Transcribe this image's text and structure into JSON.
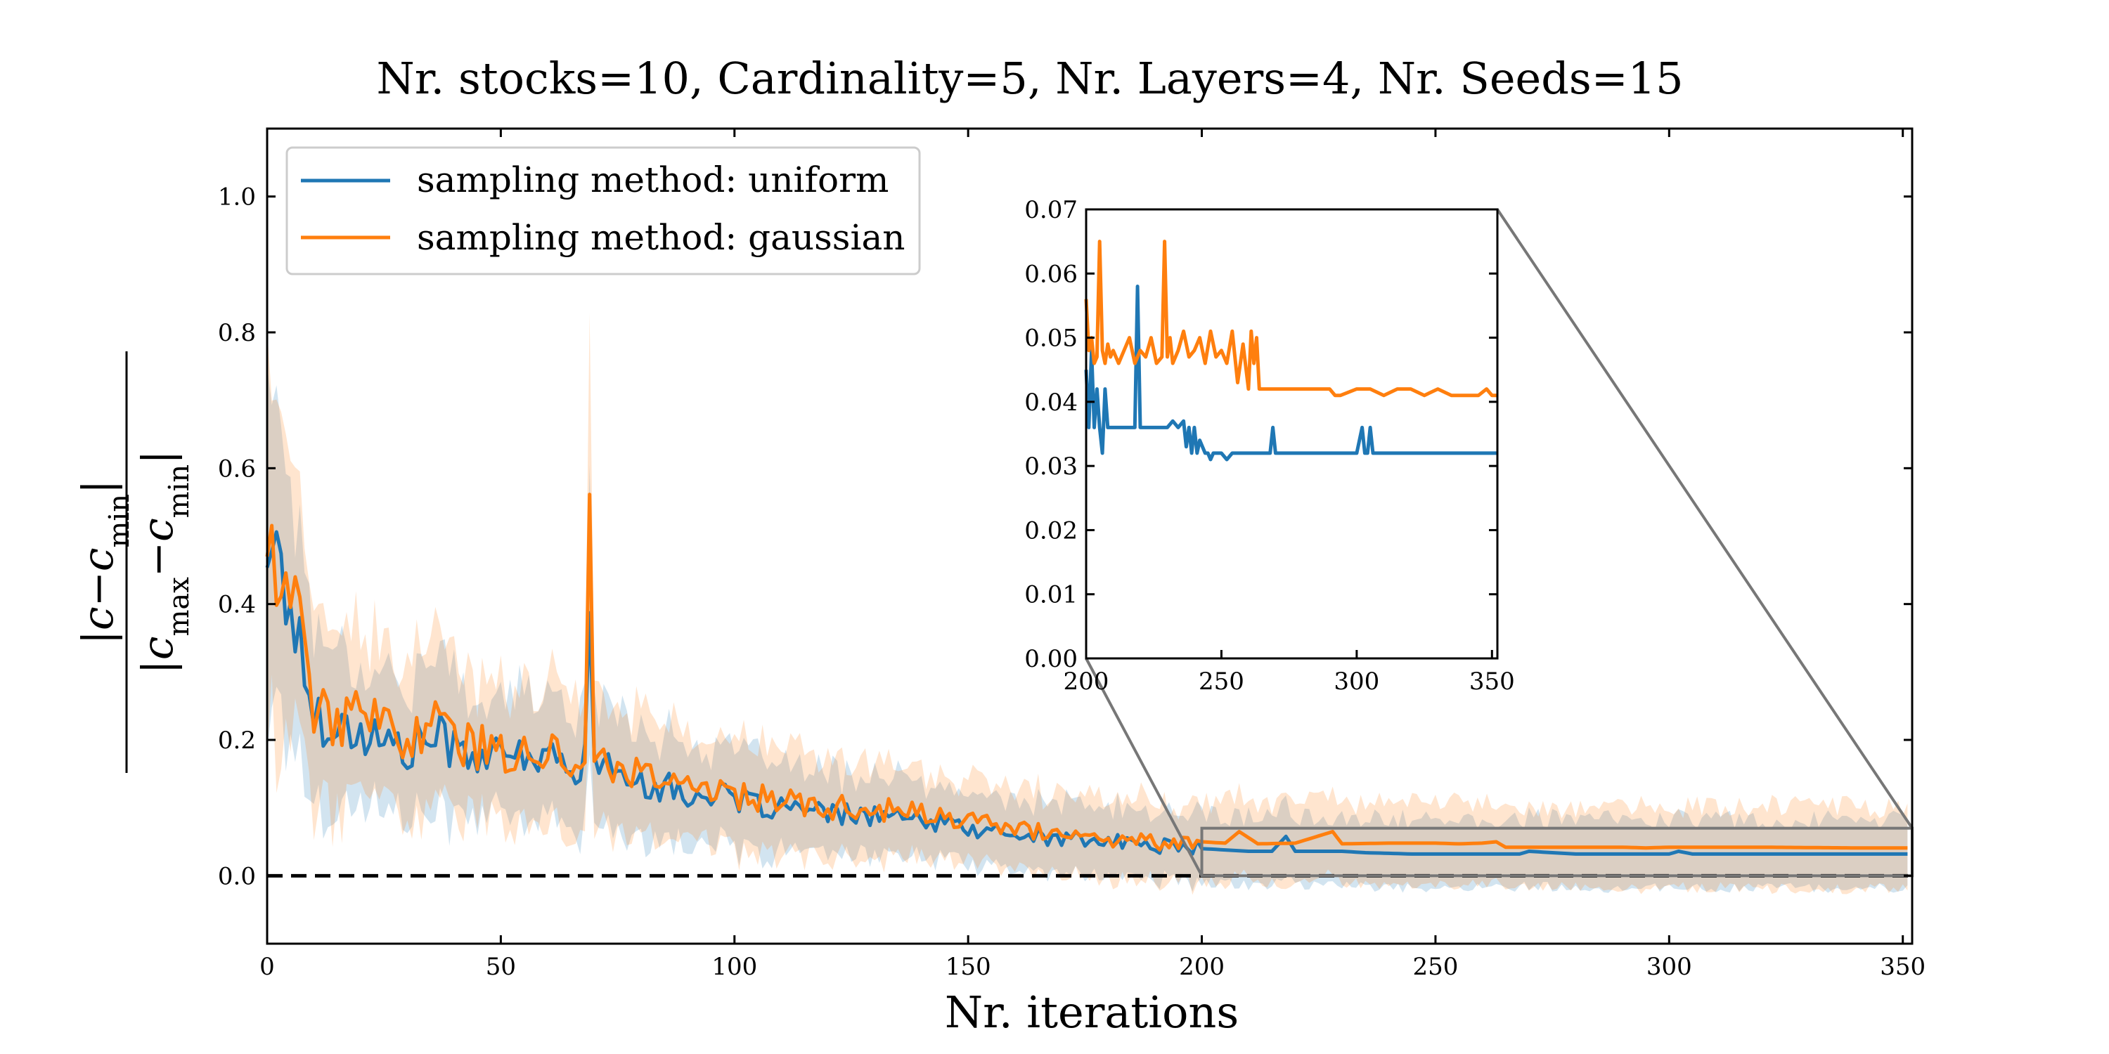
{
  "chart_data": {
    "type": "line",
    "title": "Nr. stocks=10, Cardinality=5, Nr. Layers=4, Nr. Seeds=15",
    "xlabel": "Nr. iterations",
    "ylabel": "|c−c_min| / |c_max−c_min|",
    "xlim": [
      0,
      352
    ],
    "ylim": [
      -0.1,
      1.1
    ],
    "xticks": [
      "0",
      "50",
      "100",
      "150",
      "200",
      "250",
      "300",
      "350"
    ],
    "yticks": [
      "0.0",
      "0.2",
      "0.4",
      "0.6",
      "0.8",
      "1.0"
    ],
    "legend_position": "top-left",
    "reference_line": {
      "y": 0.0,
      "style": "dashed",
      "color": "#000000"
    },
    "series": [
      {
        "name": "sampling method: uniform",
        "color": "#1f77b4",
        "anchors_x": [
          0,
          2,
          5,
          8,
          10,
          15,
          20,
          25,
          30,
          35,
          40,
          45,
          50,
          55,
          60,
          65,
          68,
          69,
          70,
          72,
          75,
          80,
          85,
          90,
          95,
          100,
          110,
          120,
          130,
          140,
          150,
          160,
          170,
          180,
          190,
          200,
          205,
          210,
          215,
          218,
          220,
          230,
          235,
          240,
          245,
          250,
          260,
          268,
          270,
          280,
          300,
          302,
          305,
          310,
          320,
          330,
          340,
          352
        ],
        "anchors_y": [
          0.5,
          0.47,
          0.4,
          0.3,
          0.24,
          0.22,
          0.21,
          0.2,
          0.18,
          0.21,
          0.19,
          0.18,
          0.17,
          0.18,
          0.17,
          0.16,
          0.17,
          0.45,
          0.17,
          0.15,
          0.16,
          0.14,
          0.13,
          0.12,
          0.12,
          0.11,
          0.1,
          0.09,
          0.09,
          0.08,
          0.07,
          0.06,
          0.055,
          0.05,
          0.045,
          0.04,
          0.038,
          0.036,
          0.036,
          0.058,
          0.036,
          0.036,
          0.034,
          0.033,
          0.032,
          0.032,
          0.032,
          0.032,
          0.036,
          0.032,
          0.032,
          0.036,
          0.032,
          0.032,
          0.032,
          0.032,
          0.032,
          0.032
        ],
        "band_width": [
          0.25,
          0.24,
          0.2,
          0.16,
          0.13,
          0.12,
          0.11,
          0.1,
          0.1,
          0.11,
          0.1,
          0.09,
          0.09,
          0.09,
          0.09,
          0.09,
          0.1,
          0.2,
          0.1,
          0.09,
          0.09,
          0.08,
          0.08,
          0.07,
          0.07,
          0.07,
          0.065,
          0.06,
          0.06,
          0.055,
          0.05,
          0.05,
          0.05,
          0.05,
          0.05,
          0.05,
          0.05,
          0.05,
          0.05,
          0.06,
          0.05,
          0.05,
          0.05,
          0.05,
          0.05,
          0.05,
          0.05,
          0.05,
          0.05,
          0.05,
          0.05,
          0.05,
          0.05,
          0.05,
          0.05,
          0.05,
          0.05,
          0.05
        ]
      },
      {
        "name": "sampling method: gaussian",
        "color": "#ff7f0e",
        "anchors_x": [
          0,
          2,
          5,
          8,
          10,
          15,
          20,
          25,
          30,
          35,
          40,
          45,
          50,
          55,
          60,
          65,
          68,
          69,
          70,
          72,
          75,
          80,
          85,
          90,
          95,
          100,
          110,
          120,
          130,
          140,
          150,
          160,
          170,
          180,
          190,
          200,
          205,
          208,
          212,
          220,
          228,
          230,
          240,
          250,
          255,
          260,
          263,
          265,
          270,
          280,
          290,
          295,
          300,
          320,
          340,
          352
        ],
        "anchors_y": [
          0.51,
          0.48,
          0.42,
          0.32,
          0.25,
          0.23,
          0.23,
          0.22,
          0.2,
          0.23,
          0.2,
          0.19,
          0.18,
          0.19,
          0.18,
          0.17,
          0.19,
          0.53,
          0.18,
          0.16,
          0.17,
          0.15,
          0.14,
          0.13,
          0.13,
          0.12,
          0.11,
          0.1,
          0.1,
          0.09,
          0.08,
          0.07,
          0.06,
          0.055,
          0.05,
          0.05,
          0.048,
          0.065,
          0.047,
          0.048,
          0.065,
          0.047,
          0.048,
          0.048,
          0.047,
          0.048,
          0.05,
          0.042,
          0.042,
          0.042,
          0.042,
          0.041,
          0.042,
          0.042,
          0.041,
          0.041
        ],
        "band_width": [
          0.26,
          0.25,
          0.21,
          0.17,
          0.14,
          0.13,
          0.12,
          0.11,
          0.11,
          0.12,
          0.11,
          0.1,
          0.1,
          0.1,
          0.1,
          0.1,
          0.11,
          0.25,
          0.11,
          0.1,
          0.1,
          0.09,
          0.09,
          0.08,
          0.08,
          0.08,
          0.075,
          0.07,
          0.07,
          0.065,
          0.06,
          0.06,
          0.06,
          0.06,
          0.06,
          0.06,
          0.06,
          0.06,
          0.06,
          0.06,
          0.06,
          0.06,
          0.06,
          0.06,
          0.06,
          0.06,
          0.06,
          0.06,
          0.06,
          0.06,
          0.06,
          0.06,
          0.06,
          0.06,
          0.06,
          0.06
        ]
      }
    ],
    "inset": {
      "xlim": [
        200,
        352
      ],
      "ylim": [
        0.0,
        0.07
      ],
      "xticks": [
        "200",
        "250",
        "300",
        "350"
      ],
      "yticks": [
        "0.00",
        "0.01",
        "0.02",
        "0.03",
        "0.04",
        "0.05",
        "0.06",
        "0.07"
      ],
      "series": [
        {
          "name": "sampling method: uniform",
          "color": "#1f77b4",
          "x": [
            200,
            201,
            202,
            203,
            204,
            205,
            206,
            207,
            208,
            210,
            212,
            214,
            216,
            217,
            218,
            219,
            220,
            222,
            224,
            226,
            228,
            230,
            232,
            234,
            236,
            237,
            238,
            239,
            240,
            241,
            242,
            244,
            245,
            246,
            247,
            248,
            250,
            252,
            254,
            256,
            258,
            260,
            262,
            264,
            266,
            268,
            269,
            270,
            272,
            280,
            290,
            300,
            302,
            303,
            304,
            305,
            306,
            307,
            308,
            310,
            320,
            330,
            340,
            352
          ],
          "y": [
            0.045,
            0.036,
            0.048,
            0.036,
            0.042,
            0.036,
            0.032,
            0.042,
            0.036,
            0.036,
            0.036,
            0.036,
            0.036,
            0.036,
            0.036,
            0.058,
            0.036,
            0.036,
            0.036,
            0.036,
            0.036,
            0.036,
            0.037,
            0.036,
            0.037,
            0.033,
            0.036,
            0.032,
            0.036,
            0.032,
            0.034,
            0.032,
            0.032,
            0.031,
            0.032,
            0.032,
            0.032,
            0.031,
            0.032,
            0.032,
            0.032,
            0.032,
            0.032,
            0.032,
            0.032,
            0.032,
            0.036,
            0.032,
            0.032,
            0.032,
            0.032,
            0.032,
            0.036,
            0.032,
            0.032,
            0.036,
            0.032,
            0.032,
            0.032,
            0.032,
            0.032,
            0.032,
            0.032,
            0.032
          ]
        },
        {
          "name": "sampling method: gaussian",
          "color": "#ff7f0e",
          "x": [
            200,
            201,
            202,
            203,
            204,
            205,
            206,
            207,
            208,
            209,
            210,
            212,
            214,
            216,
            218,
            220,
            222,
            224,
            226,
            228,
            229,
            230,
            231,
            232,
            234,
            236,
            238,
            240,
            242,
            244,
            246,
            248,
            250,
            252,
            254,
            256,
            258,
            260,
            261,
            262,
            263,
            264,
            266,
            270,
            280,
            290,
            292,
            294,
            300,
            305,
            310,
            315,
            320,
            325,
            330,
            335,
            340,
            345,
            348,
            350,
            352
          ],
          "y": [
            0.056,
            0.048,
            0.05,
            0.046,
            0.047,
            0.065,
            0.048,
            0.046,
            0.049,
            0.047,
            0.048,
            0.046,
            0.048,
            0.05,
            0.046,
            0.048,
            0.047,
            0.05,
            0.046,
            0.047,
            0.065,
            0.047,
            0.05,
            0.046,
            0.048,
            0.051,
            0.047,
            0.048,
            0.05,
            0.046,
            0.051,
            0.047,
            0.048,
            0.046,
            0.051,
            0.043,
            0.049,
            0.042,
            0.051,
            0.046,
            0.05,
            0.042,
            0.042,
            0.042,
            0.042,
            0.042,
            0.041,
            0.041,
            0.042,
            0.042,
            0.041,
            0.042,
            0.042,
            0.041,
            0.042,
            0.041,
            0.041,
            0.041,
            0.042,
            0.041,
            0.041
          ]
        }
      ]
    }
  }
}
